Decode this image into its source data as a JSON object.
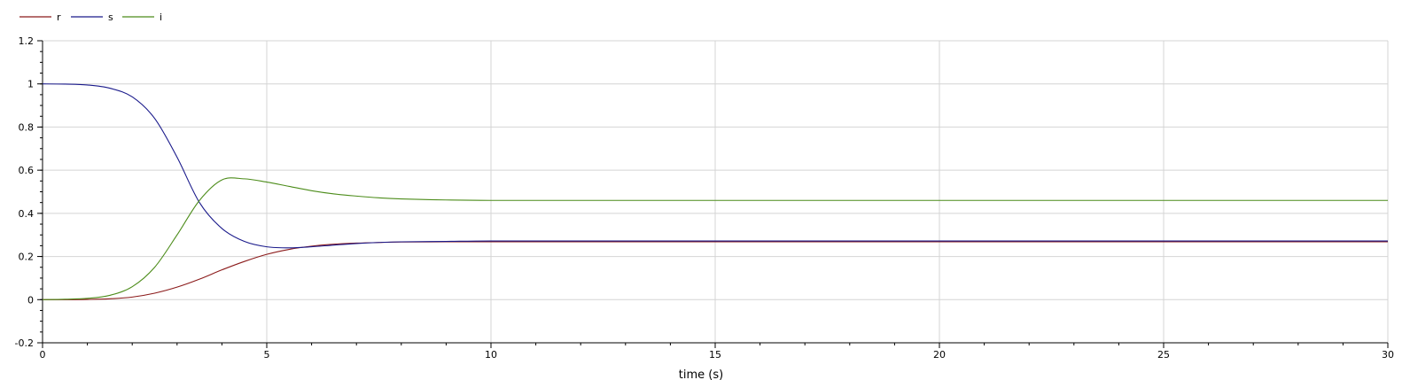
{
  "chart_data": {
    "type": "line",
    "title": "",
    "xlabel": "time (s)",
    "ylabel": "",
    "xlim": [
      0,
      30
    ],
    "ylim": [
      -0.2,
      1.2
    ],
    "grid": true,
    "legend_position": "top-left",
    "x_ticks": [
      "0",
      "5",
      "10",
      "15",
      "20",
      "25",
      "30"
    ],
    "y_ticks": [
      "-0.2",
      "0",
      "0.2",
      "0.4",
      "0.6",
      "0.8",
      "1",
      "1.2"
    ],
    "x": [
      0,
      0.5,
      1,
      1.5,
      2,
      2.5,
      3,
      3.5,
      4,
      4.5,
      5,
      5.5,
      6,
      6.5,
      7,
      7.5,
      8,
      9,
      10,
      12,
      15,
      20,
      25,
      30
    ],
    "series": [
      {
        "name": "r",
        "color": "#8b1a1a",
        "values": [
          0,
          0,
          0.001,
          0.004,
          0.012,
          0.03,
          0.058,
          0.095,
          0.138,
          0.177,
          0.21,
          0.233,
          0.248,
          0.257,
          0.262,
          0.265,
          0.267,
          0.268,
          0.268,
          0.268,
          0.268,
          0.268,
          0.268,
          0.268
        ]
      },
      {
        "name": "s",
        "color": "#1a1a8b",
        "values": [
          1,
          0.999,
          0.995,
          0.98,
          0.94,
          0.84,
          0.66,
          0.45,
          0.33,
          0.27,
          0.245,
          0.24,
          0.245,
          0.253,
          0.26,
          0.265,
          0.268,
          0.27,
          0.272,
          0.272,
          0.272,
          0.272,
          0.272,
          0.272
        ]
      },
      {
        "name": "i",
        "color": "#4c8c1a",
        "values": [
          0,
          0.002,
          0.006,
          0.02,
          0.06,
          0.15,
          0.3,
          0.46,
          0.555,
          0.56,
          0.545,
          0.525,
          0.505,
          0.49,
          0.48,
          0.472,
          0.467,
          0.462,
          0.46,
          0.46,
          0.46,
          0.46,
          0.46,
          0.46
        ]
      }
    ]
  }
}
